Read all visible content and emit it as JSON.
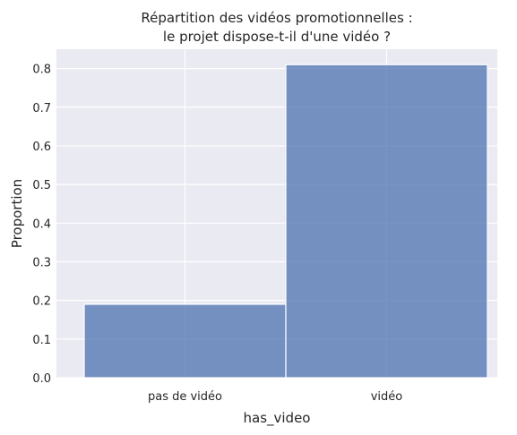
{
  "chart_data": {
    "type": "bar",
    "title_lines": [
      "Répartition des vidéos promotionnelles :",
      "le projet dispose-t-il d'une vidéo ?"
    ],
    "xlabel": "has_video",
    "ylabel": "Proportion",
    "categories": [
      "pas de vidéo",
      "vidéo"
    ],
    "values": [
      0.19,
      0.81
    ],
    "ylim": [
      0,
      0.85
    ],
    "yticks": [
      "0.0",
      "0.1",
      "0.2",
      "0.3",
      "0.4",
      "0.5",
      "0.6",
      "0.7",
      "0.8"
    ],
    "grid": true,
    "bar_color": "#4c72b0",
    "background_color": "#eaeaf2"
  }
}
